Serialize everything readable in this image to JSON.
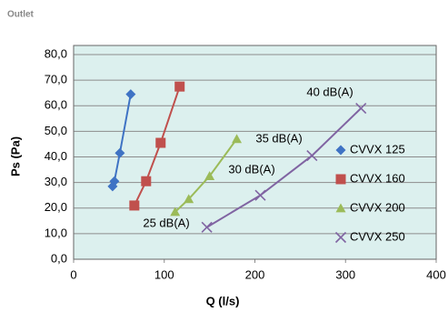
{
  "chart_data": {
    "type": "line",
    "subtitle": "Outlet",
    "x_label": "Q (l/s)",
    "y_label": "Ps (Pa)",
    "xlim": [
      0,
      400
    ],
    "xticks": [
      0,
      100,
      200,
      300,
      400
    ],
    "ylim": [
      0,
      80
    ],
    "yticks": [
      {
        "value": 0,
        "label": "0,0"
      },
      {
        "value": 10,
        "label": "10,0"
      },
      {
        "value": 20,
        "label": "20,0"
      },
      {
        "value": 30,
        "label": "30,0"
      },
      {
        "value": 40,
        "label": "40,0"
      },
      {
        "value": 50,
        "label": "50,0"
      },
      {
        "value": 60,
        "label": "60,0"
      },
      {
        "value": 70,
        "label": "70,0"
      },
      {
        "value": 80,
        "label": "80,0"
      }
    ],
    "grid": true,
    "legend": "right",
    "series": [
      {
        "name": "CVVX 125",
        "color": "#3f73c4",
        "marker": "diamond",
        "x": [
          43,
          45,
          51,
          63
        ],
        "values": [
          28.5,
          30.5,
          41.5,
          64.5
        ]
      },
      {
        "name": "CVVX 160",
        "color": "#c0504d",
        "marker": "square",
        "x": [
          67,
          80,
          96,
          117
        ],
        "values": [
          21,
          30.5,
          45.5,
          67.5
        ]
      },
      {
        "name": "CVVX 200",
        "color": "#9bbb59",
        "marker": "triangle",
        "x": [
          112,
          127,
          150,
          180
        ],
        "values": [
          18.5,
          23.5,
          32.5,
          47
        ]
      },
      {
        "name": "CVVX 250",
        "color": "#8064a2",
        "marker": "x",
        "x": [
          147,
          206,
          263,
          317
        ],
        "values": [
          12.5,
          25,
          40.5,
          59
        ]
      }
    ],
    "annotations": [
      "40 dB(A)",
      "35 dB(A)",
      "30 dB(A)",
      "25 dB(A)"
    ]
  }
}
